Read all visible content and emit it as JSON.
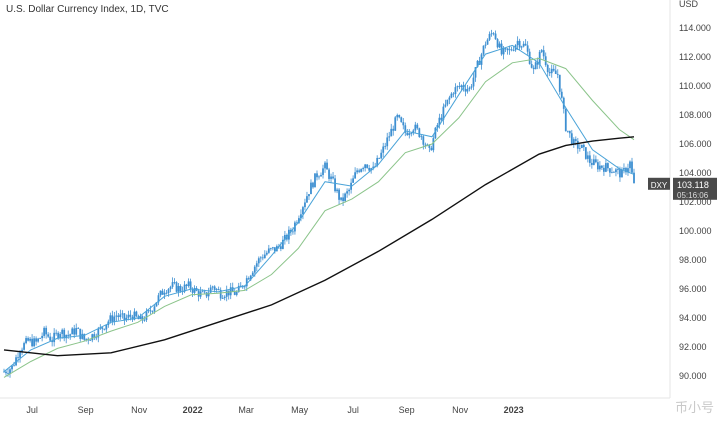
{
  "header": {
    "title": "U.S. Dollar Currency Index, 1D, TVC"
  },
  "colors": {
    "up": "#3d8fd1",
    "down": "#3d8fd1",
    "ma_fast": "#4aa3d8",
    "ma_mid": "#8bc48a",
    "ma_slow": "#111111",
    "price_tag": "#4a4a4a"
  },
  "watermark": {
    "text": "币小号"
  },
  "chart_data": {
    "type": "line",
    "title": "U.S. Dollar Currency Index, 1D, TVC",
    "xlabel": "",
    "ylabel": "",
    "currency_label": "USD",
    "ylim": [
      89.0,
      115.5
    ],
    "y_ticks": [
      "114.000",
      "112.000",
      "110.000",
      "108.000",
      "106.000",
      "104.000",
      "102.000",
      "100.000",
      "98.000",
      "96.000",
      "94.000",
      "92.000",
      "90.000"
    ],
    "x_ticks": [
      "Jul",
      "Sep",
      "Nov",
      "2022",
      "Mar",
      "May",
      "Jul",
      "Sep",
      "Nov",
      "2023"
    ],
    "last_price": {
      "symbol": "DXY",
      "value": "103.118",
      "countdown": "05:16:06"
    },
    "price_series": {
      "name": "DXY",
      "points": [
        {
          "m": 0.0,
          "v": 90.3
        },
        {
          "m": 0.3,
          "v": 90.6
        },
        {
          "m": 0.6,
          "v": 91.9
        },
        {
          "m": 0.9,
          "v": 92.4
        },
        {
          "m": 1.2,
          "v": 92.3
        },
        {
          "m": 1.5,
          "v": 93.0
        },
        {
          "m": 1.8,
          "v": 92.5
        },
        {
          "m": 2.1,
          "v": 93.1
        },
        {
          "m": 2.4,
          "v": 92.8
        },
        {
          "m": 2.7,
          "v": 93.2
        },
        {
          "m": 3.0,
          "v": 92.5
        },
        {
          "m": 3.3,
          "v": 92.8
        },
        {
          "m": 3.6,
          "v": 93.2
        },
        {
          "m": 3.9,
          "v": 93.8
        },
        {
          "m": 4.2,
          "v": 94.2
        },
        {
          "m": 4.5,
          "v": 93.9
        },
        {
          "m": 4.8,
          "v": 94.2
        },
        {
          "m": 5.1,
          "v": 93.8
        },
        {
          "m": 5.4,
          "v": 94.3
        },
        {
          "m": 5.7,
          "v": 95.2
        },
        {
          "m": 6.0,
          "v": 96.0
        },
        {
          "m": 6.3,
          "v": 96.2
        },
        {
          "m": 6.6,
          "v": 96.0
        },
        {
          "m": 6.9,
          "v": 96.2
        },
        {
          "m": 7.2,
          "v": 95.8
        },
        {
          "m": 7.5,
          "v": 95.5
        },
        {
          "m": 7.8,
          "v": 96.2
        },
        {
          "m": 8.1,
          "v": 95.7
        },
        {
          "m": 8.4,
          "v": 95.8
        },
        {
          "m": 8.7,
          "v": 95.7
        },
        {
          "m": 9.0,
          "v": 96.5
        },
        {
          "m": 9.3,
          "v": 97.4
        },
        {
          "m": 9.6,
          "v": 98.2
        },
        {
          "m": 9.9,
          "v": 98.6
        },
        {
          "m": 10.2,
          "v": 98.8
        },
        {
          "m": 10.5,
          "v": 99.4
        },
        {
          "m": 10.8,
          "v": 100.2
        },
        {
          "m": 11.1,
          "v": 101.5
        },
        {
          "m": 11.4,
          "v": 102.8
        },
        {
          "m": 11.7,
          "v": 103.9
        },
        {
          "m": 12.0,
          "v": 104.4
        },
        {
          "m": 12.3,
          "v": 103.3
        },
        {
          "m": 12.6,
          "v": 102.0
        },
        {
          "m": 12.9,
          "v": 102.8
        },
        {
          "m": 13.2,
          "v": 104.2
        },
        {
          "m": 13.5,
          "v": 104.7
        },
        {
          "m": 13.8,
          "v": 104.2
        },
        {
          "m": 14.1,
          "v": 105.3
        },
        {
          "m": 14.4,
          "v": 106.6
        },
        {
          "m": 14.7,
          "v": 107.8
        },
        {
          "m": 15.0,
          "v": 106.8
        },
        {
          "m": 15.3,
          "v": 107.2
        },
        {
          "m": 15.6,
          "v": 106.6
        },
        {
          "m": 15.9,
          "v": 105.4
        },
        {
          "m": 16.2,
          "v": 107.3
        },
        {
          "m": 16.5,
          "v": 108.6
        },
        {
          "m": 16.8,
          "v": 109.7
        },
        {
          "m": 17.1,
          "v": 110.0
        },
        {
          "m": 17.4,
          "v": 109.8
        },
        {
          "m": 17.7,
          "v": 111.4
        },
        {
          "m": 18.0,
          "v": 113.0
        },
        {
          "m": 18.3,
          "v": 113.8
        },
        {
          "m": 18.6,
          "v": 112.2
        },
        {
          "m": 18.9,
          "v": 112.4
        },
        {
          "m": 19.2,
          "v": 113.1
        },
        {
          "m": 19.5,
          "v": 112.7
        },
        {
          "m": 19.8,
          "v": 111.0
        },
        {
          "m": 20.1,
          "v": 112.5
        },
        {
          "m": 20.4,
          "v": 110.9
        },
        {
          "m": 20.7,
          "v": 110.8
        },
        {
          "m": 21.0,
          "v": 107.2
        },
        {
          "m": 21.3,
          "v": 106.0
        },
        {
          "m": 21.6,
          "v": 105.7
        },
        {
          "m": 21.9,
          "v": 104.8
        },
        {
          "m": 22.2,
          "v": 104.5
        },
        {
          "m": 22.5,
          "v": 104.4
        },
        {
          "m": 22.8,
          "v": 104.2
        },
        {
          "m": 23.1,
          "v": 103.9
        },
        {
          "m": 23.4,
          "v": 104.7
        },
        {
          "m": 23.55,
          "v": 103.118
        }
      ]
    },
    "series": [
      {
        "role": "ma_fast",
        "points": [
          {
            "m": 0,
            "v": 90.3
          },
          {
            "m": 1,
            "v": 91.8
          },
          {
            "m": 2,
            "v": 92.6
          },
          {
            "m": 3,
            "v": 92.8
          },
          {
            "m": 4,
            "v": 93.7
          },
          {
            "m": 5,
            "v": 94.0
          },
          {
            "m": 6,
            "v": 95.5
          },
          {
            "m": 7,
            "v": 96.0
          },
          {
            "m": 8,
            "v": 95.8
          },
          {
            "m": 9,
            "v": 96.2
          },
          {
            "m": 10,
            "v": 98.3
          },
          {
            "m": 11,
            "v": 100.6
          },
          {
            "m": 12,
            "v": 103.4
          },
          {
            "m": 13,
            "v": 103.1
          },
          {
            "m": 14,
            "v": 104.6
          },
          {
            "m": 15,
            "v": 106.9
          },
          {
            "m": 16,
            "v": 106.5
          },
          {
            "m": 17,
            "v": 109.4
          },
          {
            "m": 18,
            "v": 112.2
          },
          {
            "m": 19,
            "v": 112.8
          },
          {
            "m": 20,
            "v": 111.6
          },
          {
            "m": 21,
            "v": 108.5
          },
          {
            "m": 22,
            "v": 105.6
          },
          {
            "m": 23,
            "v": 104.3
          },
          {
            "m": 23.55,
            "v": 103.9
          }
        ]
      },
      {
        "role": "ma_mid",
        "points": [
          {
            "m": 0,
            "v": 89.9
          },
          {
            "m": 1,
            "v": 91.0
          },
          {
            "m": 2,
            "v": 91.9
          },
          {
            "m": 3,
            "v": 92.4
          },
          {
            "m": 4,
            "v": 93.1
          },
          {
            "m": 5,
            "v": 93.7
          },
          {
            "m": 6,
            "v": 94.8
          },
          {
            "m": 7,
            "v": 95.6
          },
          {
            "m": 8,
            "v": 95.7
          },
          {
            "m": 9,
            "v": 95.9
          },
          {
            "m": 10,
            "v": 97.0
          },
          {
            "m": 11,
            "v": 98.8
          },
          {
            "m": 12,
            "v": 101.4
          },
          {
            "m": 13,
            "v": 102.2
          },
          {
            "m": 14,
            "v": 103.4
          },
          {
            "m": 15,
            "v": 105.4
          },
          {
            "m": 16,
            "v": 106.0
          },
          {
            "m": 17,
            "v": 107.8
          },
          {
            "m": 18,
            "v": 110.3
          },
          {
            "m": 19,
            "v": 111.6
          },
          {
            "m": 20,
            "v": 111.9
          },
          {
            "m": 21,
            "v": 111.2
          },
          {
            "m": 22,
            "v": 109.0
          },
          {
            "m": 23,
            "v": 107.0
          },
          {
            "m": 23.55,
            "v": 106.3
          }
        ]
      },
      {
        "role": "ma_slow",
        "points": [
          {
            "m": 0,
            "v": 91.8
          },
          {
            "m": 2,
            "v": 91.4
          },
          {
            "m": 4,
            "v": 91.6
          },
          {
            "m": 6,
            "v": 92.5
          },
          {
            "m": 8,
            "v": 93.7
          },
          {
            "m": 10,
            "v": 94.9
          },
          {
            "m": 12,
            "v": 96.6
          },
          {
            "m": 14,
            "v": 98.6
          },
          {
            "m": 16,
            "v": 100.8
          },
          {
            "m": 18,
            "v": 103.2
          },
          {
            "m": 20,
            "v": 105.3
          },
          {
            "m": 21,
            "v": 105.9
          },
          {
            "m": 22,
            "v": 106.2
          },
          {
            "m": 23,
            "v": 106.4
          },
          {
            "m": 23.55,
            "v": 106.5
          }
        ]
      }
    ],
    "legend": "none",
    "grid": false
  }
}
